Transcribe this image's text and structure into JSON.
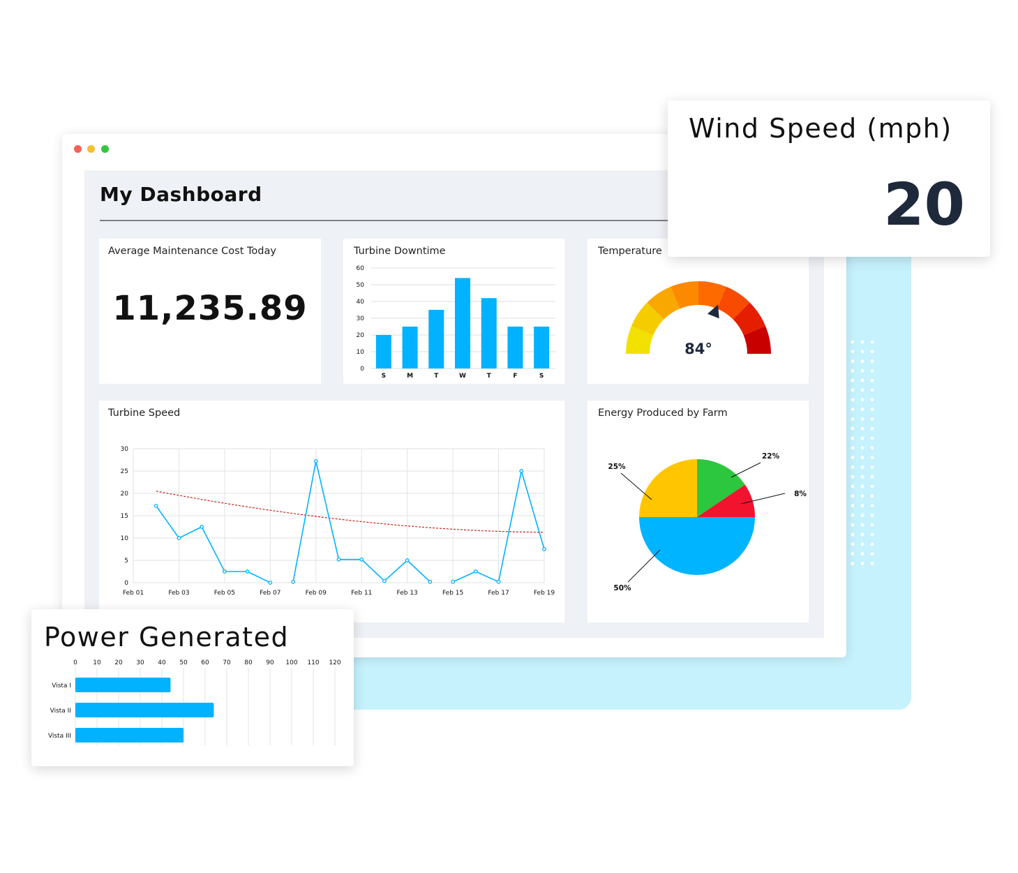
{
  "window": {
    "title": "My Dashboard"
  },
  "colors": {
    "accent": "#00b2ff",
    "trend": "#c81e1e",
    "backdrop": "#c6f2fd"
  },
  "cards": {
    "maintenance": {
      "title": "Average Maintenance Cost Today",
      "value": "11,235.89"
    },
    "downtime": {
      "title": "Turbine Downtime"
    },
    "temperature": {
      "title": "Temperature",
      "value": "84°",
      "fraction": 0.62
    },
    "turbine_speed": {
      "title": "Turbine Speed"
    },
    "energy": {
      "title": "Energy Produced by Farm"
    }
  },
  "wind_speed": {
    "title": "Wind Speed (mph)",
    "value": "20"
  },
  "power": {
    "title": "Power Generated"
  },
  "chart_data": [
    {
      "id": "downtime",
      "type": "bar",
      "categories": [
        "S",
        "M",
        "T",
        "W",
        "T",
        "F",
        "S"
      ],
      "values": [
        20,
        25,
        35,
        54,
        42,
        25,
        25
      ],
      "yticks": [
        0,
        10,
        20,
        30,
        40,
        50,
        60
      ],
      "ylim": [
        0,
        60
      ],
      "grid": true
    },
    {
      "id": "turbine_speed",
      "type": "line",
      "xticks": [
        "Feb 01",
        "Feb 03",
        "Feb 05",
        "Feb 07",
        "Feb 09",
        "Feb 11",
        "Feb 13",
        "Feb 15",
        "Feb 17",
        "Feb 19"
      ],
      "yticks": [
        0,
        5,
        10,
        15,
        20,
        25,
        30
      ],
      "ylim": [
        0,
        30
      ],
      "xlim": [
        1,
        19
      ],
      "segments": [
        [
          [
            2,
            17.2
          ],
          [
            3,
            10
          ],
          [
            4,
            12.5
          ],
          [
            5,
            2.5
          ],
          [
            6,
            2.5
          ],
          [
            7,
            0
          ]
        ],
        [
          [
            8,
            0.2
          ],
          [
            9,
            27.2
          ],
          [
            10,
            5.2
          ],
          [
            11,
            5.2
          ],
          [
            12,
            0.4
          ],
          [
            13,
            5
          ],
          [
            14,
            0.2
          ]
        ],
        [
          [
            15,
            0.2
          ],
          [
            16,
            2.5
          ],
          [
            17,
            0.2
          ],
          [
            18,
            25
          ],
          [
            19,
            7.5
          ]
        ]
      ],
      "trend": {
        "start": [
          2,
          20.5
        ],
        "end": [
          19,
          11.3
        ]
      },
      "grid": true
    },
    {
      "id": "energy",
      "type": "pie",
      "labels": [
        "22%",
        "8%",
        "50%",
        "25%"
      ],
      "values": [
        22,
        8,
        50,
        25
      ],
      "colors": [
        "#2dc63f",
        "#f2132f",
        "#00b4ff",
        "#ffc600"
      ]
    },
    {
      "id": "power",
      "type": "bar",
      "orientation": "horizontal",
      "categories": [
        "Vista I",
        "Vista II",
        "Vista III"
      ],
      "values": [
        44,
        64,
        50
      ],
      "xticks": [
        0,
        10,
        20,
        30,
        40,
        50,
        60,
        70,
        80,
        90,
        100,
        110,
        120
      ],
      "xlim": [
        0,
        120
      ],
      "grid": true
    }
  ]
}
